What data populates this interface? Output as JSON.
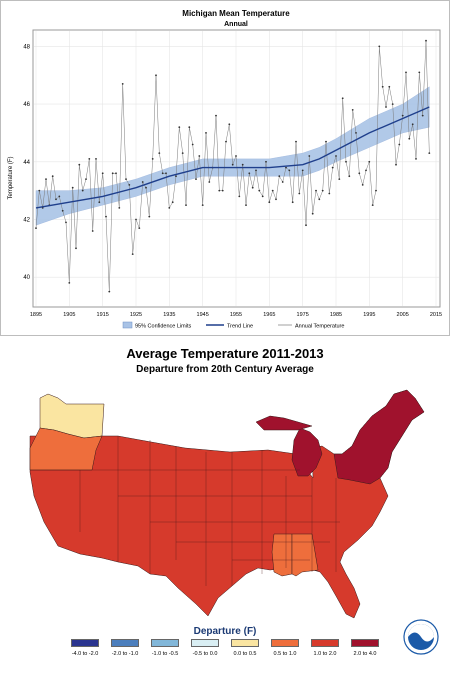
{
  "line_chart": {
    "title": "Michigan Mean Temperature",
    "subtitle": "Annual",
    "ylabel": "Temperature (F)",
    "xticks": [
      "1895",
      "1905",
      "1915",
      "1925",
      "1935",
      "1945",
      "1955",
      "1965",
      "1975",
      "1985",
      "1995",
      "2005",
      "2015"
    ],
    "yticks": [
      "40",
      "42",
      "44",
      "46",
      "48"
    ],
    "legend": {
      "ci_label": "95% Confidence Limits",
      "trend_label": "Trend Line",
      "annual_label": "Annual Temperature"
    }
  },
  "map": {
    "title": "Average Temperature 2011-2013",
    "subtitle": "Departure from 20th Century Average",
    "legend_title": "Departure (F)",
    "legend_items": [
      {
        "label": "-4.0 to -2.0",
        "color": "#2b3590"
      },
      {
        "label": "-2.0 to -1.0",
        "color": "#4c7fbd"
      },
      {
        "label": "-1.0 to -0.5",
        "color": "#82b7d9"
      },
      {
        "label": "-0.5 to 0.0",
        "color": "#d9eef3"
      },
      {
        "label": "0.0 to 0.5",
        "color": "#fae5a1"
      },
      {
        "label": "0.5 to 1.0",
        "color": "#ee6e3c"
      },
      {
        "label": "1.0 to 2.0",
        "color": "#d63a2c"
      },
      {
        "label": "2.0 to 4.0",
        "color": "#a0122d"
      }
    ],
    "logo_name": "noaa-logo"
  },
  "chart_data": [
    {
      "type": "line",
      "title": "Michigan Mean Temperature",
      "subtitle": "Annual",
      "ylabel": "Temperature (F)",
      "xlabel": "",
      "xlim": [
        1895,
        2015
      ],
      "ylim": [
        39,
        48.5
      ],
      "grid": true,
      "legend_position": "bottom",
      "series": [
        {
          "name": "Annual Temperature",
          "x": [
            1895,
            1896,
            1897,
            1898,
            1899,
            1900,
            1901,
            1902,
            1903,
            1904,
            1905,
            1906,
            1907,
            1908,
            1909,
            1910,
            1911,
            1912,
            1913,
            1914,
            1915,
            1916,
            1917,
            1918,
            1919,
            1920,
            1921,
            1922,
            1923,
            1924,
            1925,
            1926,
            1927,
            1928,
            1929,
            1930,
            1931,
            1932,
            1933,
            1934,
            1935,
            1936,
            1937,
            1938,
            1939,
            1940,
            1941,
            1942,
            1943,
            1944,
            1945,
            1946,
            1947,
            1948,
            1949,
            1950,
            1951,
            1952,
            1953,
            1954,
            1955,
            1956,
            1957,
            1958,
            1959,
            1960,
            1961,
            1962,
            1963,
            1964,
            1965,
            1966,
            1967,
            1968,
            1969,
            1970,
            1971,
            1972,
            1973,
            1974,
            1975,
            1976,
            1977,
            1978,
            1979,
            1980,
            1981,
            1982,
            1983,
            1984,
            1985,
            1986,
            1987,
            1988,
            1989,
            1990,
            1991,
            1992,
            1993,
            1994,
            1995,
            1996,
            1997,
            1998,
            1999,
            2000,
            2001,
            2002,
            2003,
            2004,
            2005,
            2006,
            2007,
            2008,
            2009,
            2010,
            2011,
            2012,
            2013
          ],
          "values": [
            41.7,
            43.0,
            42.4,
            43.4,
            42.5,
            43.5,
            42.7,
            42.8,
            42.3,
            41.9,
            39.8,
            43.1,
            41.0,
            43.9,
            43.0,
            43.4,
            44.1,
            41.6,
            44.1,
            42.6,
            43.6,
            42.1,
            39.5,
            43.6,
            43.6,
            42.4,
            46.7,
            43.4,
            43.2,
            40.8,
            42.0,
            41.7,
            43.3,
            43.1,
            42.1,
            44.1,
            47.0,
            44.3,
            43.6,
            43.6,
            42.4,
            42.6,
            43.5,
            45.2,
            44.3,
            42.5,
            45.2,
            44.6,
            43.4,
            44.2,
            42.5,
            45.0,
            43.3,
            43.8,
            45.6,
            43.0,
            43.0,
            44.7,
            45.3,
            43.9,
            44.2,
            42.8,
            43.9,
            42.5,
            43.6,
            43.1,
            43.7,
            43.0,
            42.8,
            44.0,
            42.6,
            43.0,
            42.7,
            43.5,
            43.3,
            43.8,
            43.7,
            42.6,
            44.7,
            42.9,
            43.7,
            41.8,
            44.2,
            42.2,
            43.0,
            42.7,
            43.0,
            44.7,
            42.9,
            43.8,
            44.2,
            43.4,
            46.2,
            44.0,
            43.5,
            45.8,
            45.0,
            43.6,
            43.2,
            43.7,
            44.0,
            42.5,
            43.0,
            48.0,
            46.6,
            45.9,
            46.6,
            46.0,
            43.9,
            44.6,
            45.6,
            47.1,
            44.8,
            45.3,
            44.1,
            47.1,
            45.6,
            48.2,
            44.3
          ]
        },
        {
          "name": "Trend Line",
          "x": [
            1895,
            1905,
            1915,
            1925,
            1935,
            1945,
            1955,
            1965,
            1975,
            1980,
            1985,
            1995,
            2005,
            2013
          ],
          "values": [
            42.4,
            42.6,
            42.8,
            43.1,
            43.5,
            43.8,
            43.8,
            43.8,
            43.9,
            44.1,
            44.4,
            45.0,
            45.5,
            45.9
          ],
          "ci_lower": [
            41.8,
            42.2,
            42.5,
            42.8,
            43.2,
            43.5,
            43.5,
            43.5,
            43.5,
            43.7,
            44.0,
            44.5,
            45.0,
            45.2
          ],
          "ci_upper": [
            43.0,
            43.0,
            43.1,
            43.4,
            43.8,
            44.1,
            44.1,
            44.1,
            44.3,
            44.5,
            44.8,
            45.5,
            46.0,
            46.6
          ]
        }
      ]
    },
    {
      "type": "choropleth",
      "title": "Average Temperature 2011-2013",
      "subtitle": "Departure from 20th Century Average",
      "legend_title": "Departure (F)",
      "categories": [
        "-4.0 to -2.0",
        "-2.0 to -1.0",
        "-1.0 to -0.5",
        "-0.5 to 0.0",
        "0.0 to 0.5",
        "0.5 to 1.0",
        "1.0 to 2.0",
        "2.0 to 4.0"
      ],
      "regions": [
        {
          "name": "Washington",
          "class": "0.0 to 0.5"
        },
        {
          "name": "Oregon",
          "class": "0.5 to 1.0"
        },
        {
          "name": "Mississippi",
          "class": "0.5 to 1.0"
        },
        {
          "name": "Alabama",
          "class": "0.5 to 1.0"
        },
        {
          "name": "Michigan",
          "class": "2.0 to 4.0"
        },
        {
          "name": "Northeast",
          "class": "2.0 to 4.0"
        },
        {
          "name": "Rest of contiguous US",
          "class": "1.0 to 2.0"
        }
      ]
    }
  ]
}
